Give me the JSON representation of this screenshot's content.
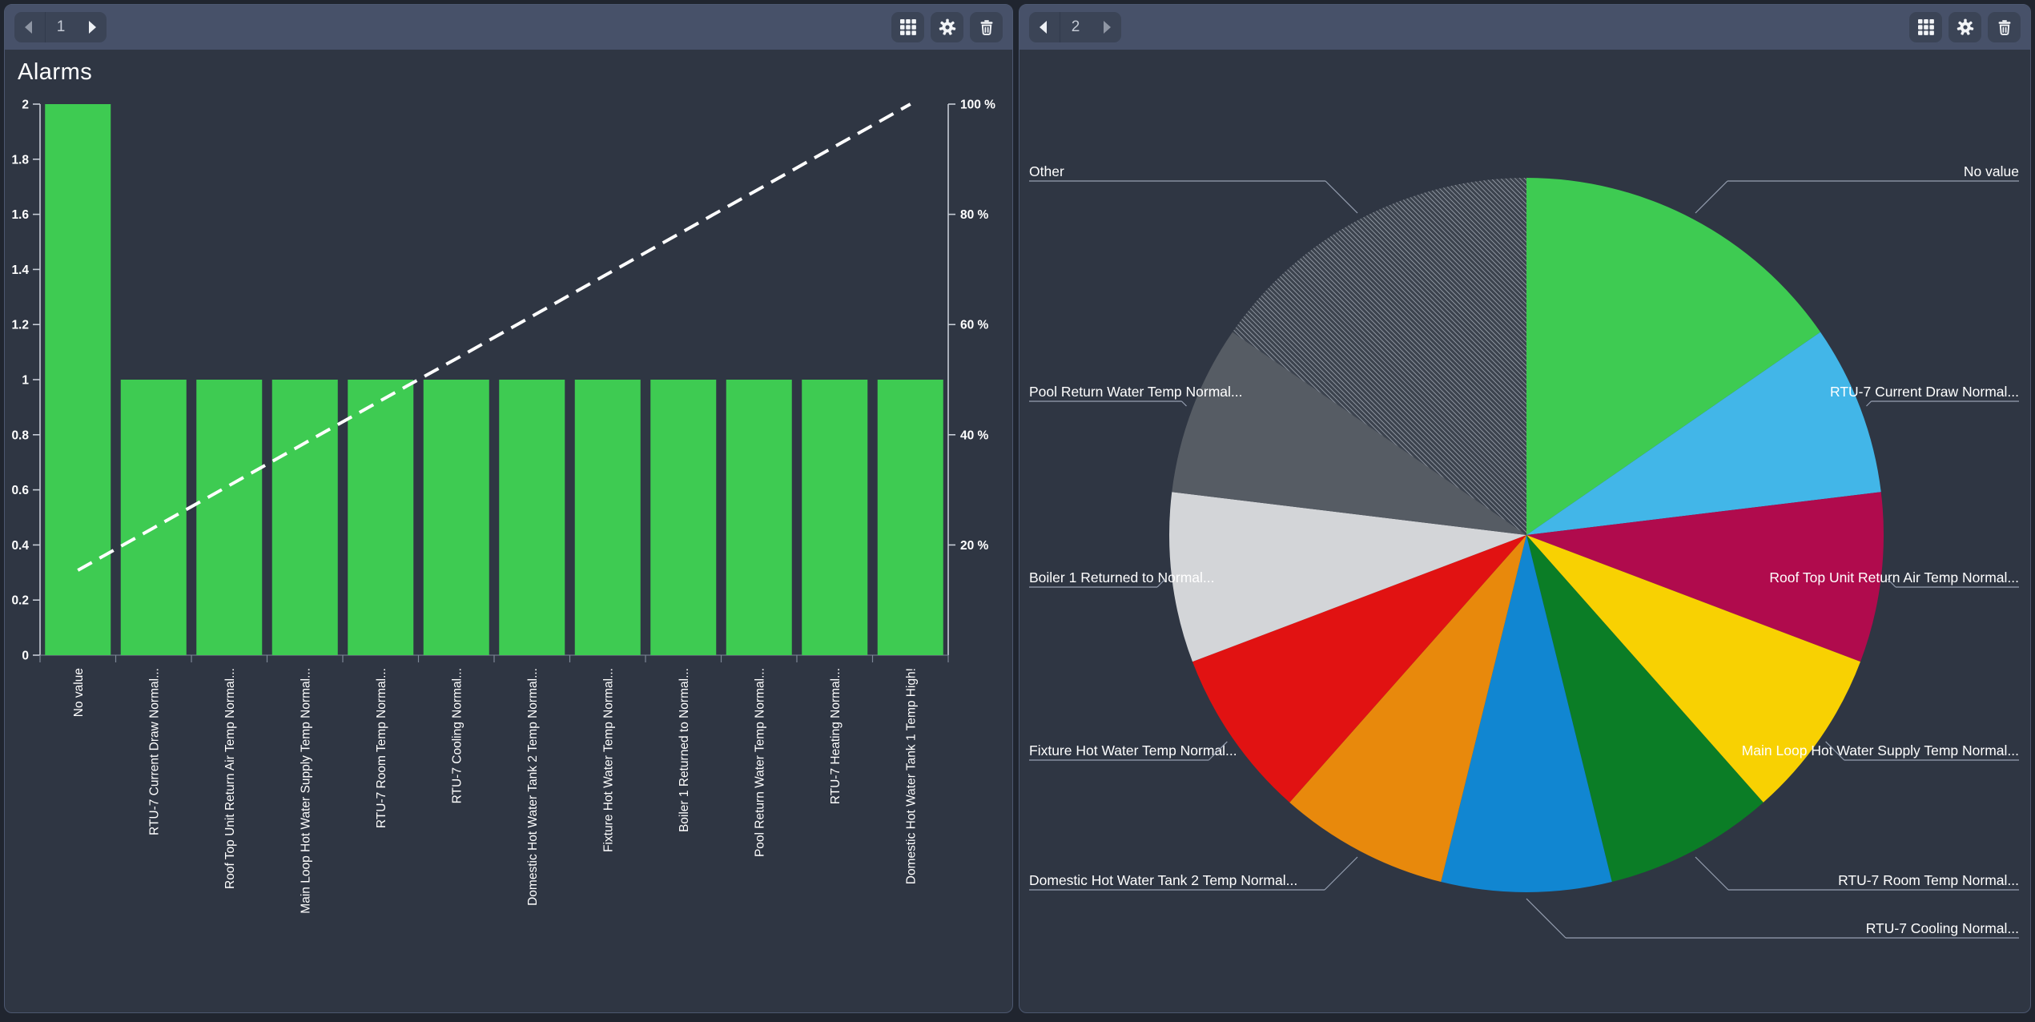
{
  "panels": [
    {
      "id": "alarms-bar-panel",
      "nav": {
        "page": "1",
        "prev_enabled": false,
        "next_enabled": true
      },
      "title": "Alarms",
      "toolbar_icons": [
        "grid",
        "settings",
        "delete"
      ]
    },
    {
      "id": "alarms-pie-panel",
      "nav": {
        "page": "2",
        "prev_enabled": true,
        "next_enabled": false
      },
      "title": "",
      "toolbar_icons": [
        "grid",
        "settings",
        "delete"
      ]
    }
  ],
  "chart_data": [
    {
      "type": "bar",
      "subtype": "pareto",
      "title": "Alarms",
      "legend": "off",
      "grid": "off",
      "categories": [
        "No value",
        "RTU-7 Current Draw Normal...",
        "Roof Top Unit Return Air Temp Normal...",
        "Main Loop Hot Water Supply Temp Normal...",
        "RTU-7 Room Temp Normal...",
        "RTU-7 Cooling Normal...",
        "Domestic Hot Water Tank 2 Temp Normal...",
        "Fixture Hot Water Temp Normal...",
        "Boiler 1 Returned to Normal...",
        "Pool Return Water Temp Normal...",
        "RTU-7 Heating Normal...",
        "Domestic Hot Water Tank 1 Temp High!"
      ],
      "values": [
        2,
        1,
        1,
        1,
        1,
        1,
        1,
        1,
        1,
        1,
        1,
        1
      ],
      "cumulative_percent": [
        15.4,
        23.1,
        30.8,
        38.5,
        46.2,
        53.8,
        61.5,
        69.2,
        76.9,
        84.6,
        92.3,
        100
      ],
      "y_left": {
        "min": 0,
        "max": 2,
        "tick_labels": [
          "0",
          "0.2",
          "0.4",
          "0.6",
          "0.8",
          "1",
          "1.2",
          "1.4",
          "1.6",
          "1.8",
          "2"
        ]
      },
      "y_right": {
        "min": 0,
        "max": 100,
        "tick_labels": [
          "20 %",
          "40 %",
          "60 %",
          "80 %",
          "100 %"
        ]
      },
      "bar_color": "#3ecb52",
      "line_color": "#ffffff",
      "line_style": "dashed"
    },
    {
      "type": "pie",
      "total_count": 13,
      "slices": [
        {
          "label": "No value",
          "value": 2,
          "percent": 15.4,
          "color": "#3ecb52",
          "hatched": false,
          "label_side": "right"
        },
        {
          "label": "RTU-7 Current Draw Normal...",
          "value": 1,
          "percent": 7.7,
          "color": "#42b6e8",
          "hatched": false,
          "label_side": "right"
        },
        {
          "label": "Roof Top Unit Return Air Temp Normal...",
          "value": 1,
          "percent": 7.7,
          "color": "#b00b4d",
          "hatched": false,
          "label_side": "right"
        },
        {
          "label": "Main Loop Hot Water Supply Temp Normal...",
          "value": 1,
          "percent": 7.7,
          "color": "#f8d102",
          "hatched": false,
          "label_side": "right"
        },
        {
          "label": "RTU-7 Room Temp Normal...",
          "value": 1,
          "percent": 7.7,
          "color": "#0b7d26",
          "hatched": false,
          "label_side": "right"
        },
        {
          "label": "RTU-7 Cooling Normal...",
          "value": 1,
          "percent": 7.7,
          "color": "#1186d1",
          "hatched": false,
          "label_side": "right"
        },
        {
          "label": "Domestic Hot Water Tank 2 Temp Normal...",
          "value": 1,
          "percent": 7.7,
          "color": "#e8890c",
          "hatched": false,
          "label_side": "left"
        },
        {
          "label": "Fixture Hot Water Temp Normal...",
          "value": 1,
          "percent": 7.7,
          "color": "#e11212",
          "hatched": false,
          "label_side": "left"
        },
        {
          "label": "Boiler 1 Returned to Normal...",
          "value": 1,
          "percent": 7.7,
          "color": "#d3d5d8",
          "hatched": false,
          "label_side": "left"
        },
        {
          "label": "Pool Return Water Temp Normal...",
          "value": 1,
          "percent": 7.7,
          "color": "#565c64",
          "hatched": false,
          "label_side": "left"
        },
        {
          "label": "Other",
          "value": 2,
          "percent": 15.4,
          "color": "#3c434e",
          "hatched": true,
          "label_side": "left"
        }
      ],
      "hatch_line_color": "#99a0ab",
      "label_line_color": "#96a0b2"
    }
  ],
  "colors": {
    "page_bg": "#20252f",
    "panel_bg": "#2f3643",
    "header_bg": "#475169",
    "button_bg": "#3b4456",
    "axis": "#c6ccd6",
    "text": "#ffffff"
  }
}
